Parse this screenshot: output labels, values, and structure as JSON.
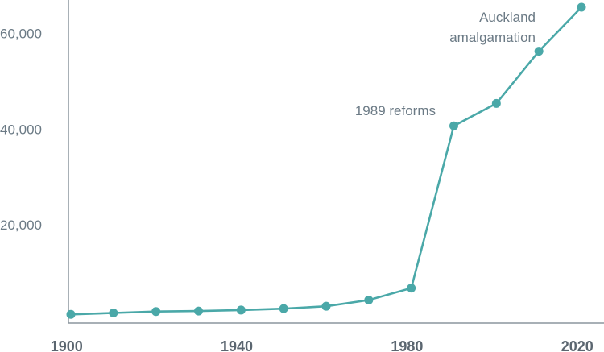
{
  "chart_data": {
    "type": "line",
    "title": "",
    "xlabel": "",
    "ylabel": "",
    "xlim": [
      1900,
      2022
    ],
    "ylim": [
      0,
      66000
    ],
    "x_ticks": [
      {
        "value": 1900,
        "label": "1900"
      },
      {
        "value": 1940,
        "label": "1940"
      },
      {
        "value": 1980,
        "label": "1980"
      },
      {
        "value": 2020,
        "label": "2020"
      }
    ],
    "y_ticks": [
      {
        "value": 20000,
        "label": "20,000"
      },
      {
        "value": 40000,
        "label": "40,000"
      },
      {
        "value": 60000,
        "label": "60,000"
      }
    ],
    "grid": false,
    "legend": "none",
    "colors": {
      "line": "#4aa8a8",
      "axis": "#8b969e",
      "text": "#6b7a85"
    },
    "series": [
      {
        "x": [
          1901,
          1911,
          1921,
          1931,
          1941,
          1951,
          1961,
          1971,
          1981,
          1991,
          2001,
          2011,
          2021
        ],
        "y": [
          1300,
          1600,
          1900,
          2000,
          2200,
          2500,
          3000,
          4300,
          6800,
          40700,
          45400,
          56300,
          65500
        ]
      }
    ],
    "annotations": [
      {
        "lines": [
          "1989 reforms"
        ],
        "x": 1989,
        "y": 40700
      },
      {
        "lines": [
          "Auckland",
          "amalgamation"
        ],
        "x": 2010,
        "y": 65500
      }
    ]
  }
}
